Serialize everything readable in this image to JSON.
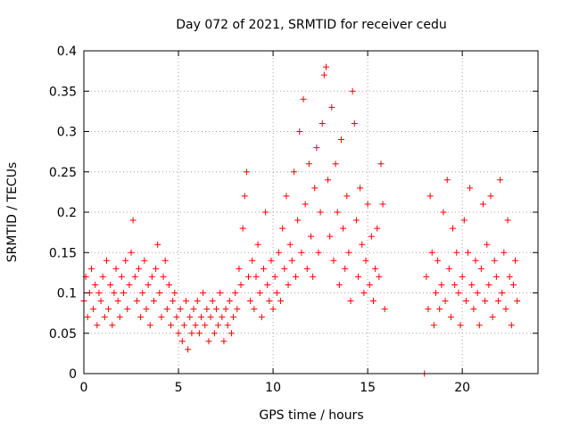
{
  "chart_data": {
    "type": "scatter",
    "title": "Day 072 of 2021, SRMTID for receiver cedu",
    "xlabel": "GPS time / hours",
    "ylabel": "SRMTID / TECUs",
    "xlim": [
      0,
      24
    ],
    "ylim": [
      0,
      0.4
    ],
    "x_ticks": [
      0,
      5,
      10,
      15,
      20
    ],
    "x_tick_labels": [
      "0",
      "5",
      "10",
      "15",
      "20"
    ],
    "y_ticks": [
      0,
      0.05,
      0.1,
      0.15,
      0.2,
      0.25,
      0.3,
      0.35,
      0.4
    ],
    "y_tick_labels": [
      "0",
      "0.05",
      "0.1",
      "0.15",
      "0.2",
      "0.25",
      "0.3",
      "0.35",
      "0.4"
    ],
    "grid": true,
    "marker": "plus",
    "color": "#ff0000",
    "series": [
      {
        "name": "SRMTID",
        "points": [
          [
            0.0,
            0.09
          ],
          [
            0.1,
            0.12
          ],
          [
            0.2,
            0.07
          ],
          [
            0.3,
            0.1
          ],
          [
            0.4,
            0.13
          ],
          [
            0.5,
            0.08
          ],
          [
            0.6,
            0.11
          ],
          [
            0.7,
            0.06
          ],
          [
            0.8,
            0.1
          ],
          [
            0.9,
            0.09
          ],
          [
            1.0,
            0.12
          ],
          [
            1.1,
            0.07
          ],
          [
            1.2,
            0.14
          ],
          [
            1.3,
            0.08
          ],
          [
            1.4,
            0.11
          ],
          [
            1.5,
            0.06
          ],
          [
            1.6,
            0.1
          ],
          [
            1.7,
            0.13
          ],
          [
            1.8,
            0.09
          ],
          [
            1.9,
            0.07
          ],
          [
            2.0,
            0.12
          ],
          [
            2.1,
            0.1
          ],
          [
            2.2,
            0.14
          ],
          [
            2.3,
            0.08
          ],
          [
            2.4,
            0.11
          ],
          [
            2.5,
            0.15
          ],
          [
            2.6,
            0.19
          ],
          [
            2.7,
            0.12
          ],
          [
            2.8,
            0.09
          ],
          [
            2.9,
            0.13
          ],
          [
            3.0,
            0.07
          ],
          [
            3.1,
            0.1
          ],
          [
            3.2,
            0.14
          ],
          [
            3.3,
            0.08
          ],
          [
            3.4,
            0.11
          ],
          [
            3.5,
            0.06
          ],
          [
            3.6,
            0.12
          ],
          [
            3.7,
            0.09
          ],
          [
            3.8,
            0.13
          ],
          [
            3.9,
            0.16
          ],
          [
            4.0,
            0.1
          ],
          [
            4.1,
            0.07
          ],
          [
            4.2,
            0.12
          ],
          [
            4.3,
            0.14
          ],
          [
            4.4,
            0.08
          ],
          [
            4.5,
            0.11
          ],
          [
            4.6,
            0.06
          ],
          [
            4.7,
            0.09
          ],
          [
            4.8,
            0.1
          ],
          [
            4.9,
            0.07
          ],
          [
            5.0,
            0.05
          ],
          [
            5.1,
            0.08
          ],
          [
            5.2,
            0.04
          ],
          [
            5.3,
            0.06
          ],
          [
            5.4,
            0.09
          ],
          [
            5.5,
            0.03
          ],
          [
            5.6,
            0.07
          ],
          [
            5.7,
            0.05
          ],
          [
            5.8,
            0.08
          ],
          [
            5.9,
            0.06
          ],
          [
            6.0,
            0.09
          ],
          [
            6.1,
            0.05
          ],
          [
            6.2,
            0.07
          ],
          [
            6.3,
            0.1
          ],
          [
            6.4,
            0.06
          ],
          [
            6.5,
            0.08
          ],
          [
            6.6,
            0.04
          ],
          [
            6.7,
            0.07
          ],
          [
            6.8,
            0.09
          ],
          [
            6.9,
            0.05
          ],
          [
            7.0,
            0.08
          ],
          [
            7.1,
            0.06
          ],
          [
            7.2,
            0.1
          ],
          [
            7.3,
            0.07
          ],
          [
            7.4,
            0.04
          ],
          [
            7.5,
            0.08
          ],
          [
            7.6,
            0.06
          ],
          [
            7.7,
            0.09
          ],
          [
            7.8,
            0.05
          ],
          [
            7.9,
            0.07
          ],
          [
            8.0,
            0.1
          ],
          [
            8.1,
            0.08
          ],
          [
            8.2,
            0.13
          ],
          [
            8.3,
            0.11
          ],
          [
            8.4,
            0.18
          ],
          [
            8.5,
            0.22
          ],
          [
            8.6,
            0.25
          ],
          [
            8.7,
            0.12
          ],
          [
            8.8,
            0.09
          ],
          [
            8.9,
            0.14
          ],
          [
            9.0,
            0.08
          ],
          [
            9.1,
            0.12
          ],
          [
            9.2,
            0.16
          ],
          [
            9.3,
            0.1
          ],
          [
            9.4,
            0.07
          ],
          [
            9.5,
            0.13
          ],
          [
            9.6,
            0.2
          ],
          [
            9.7,
            0.11
          ],
          [
            9.8,
            0.09
          ],
          [
            9.9,
            0.14
          ],
          [
            10.0,
            0.08
          ],
          [
            10.1,
            0.12
          ],
          [
            10.2,
            0.1
          ],
          [
            10.3,
            0.15
          ],
          [
            10.4,
            0.09
          ],
          [
            10.5,
            0.18
          ],
          [
            10.6,
            0.13
          ],
          [
            10.7,
            0.22
          ],
          [
            10.8,
            0.11
          ],
          [
            10.9,
            0.16
          ],
          [
            11.0,
            0.14
          ],
          [
            11.1,
            0.25
          ],
          [
            11.2,
            0.12
          ],
          [
            11.3,
            0.19
          ],
          [
            11.4,
            0.3
          ],
          [
            11.5,
            0.15
          ],
          [
            11.6,
            0.34
          ],
          [
            11.7,
            0.21
          ],
          [
            11.8,
            0.13
          ],
          [
            11.9,
            0.26
          ],
          [
            12.0,
            0.17
          ],
          [
            12.1,
            0.12
          ],
          [
            12.2,
            0.23
          ],
          [
            12.3,
            0.28
          ],
          [
            12.4,
            0.15
          ],
          [
            12.5,
            0.2
          ],
          [
            12.6,
            0.31
          ],
          [
            12.7,
            0.37
          ],
          [
            12.8,
            0.38
          ],
          [
            12.9,
            0.24
          ],
          [
            13.0,
            0.17
          ],
          [
            13.1,
            0.33
          ],
          [
            13.2,
            0.14
          ],
          [
            13.3,
            0.26
          ],
          [
            13.4,
            0.2
          ],
          [
            13.5,
            0.11
          ],
          [
            13.6,
            0.29
          ],
          [
            13.7,
            0.18
          ],
          [
            13.8,
            0.13
          ],
          [
            13.9,
            0.22
          ],
          [
            14.0,
            0.15
          ],
          [
            14.1,
            0.09
          ],
          [
            14.2,
            0.35
          ],
          [
            14.3,
            0.31
          ],
          [
            14.4,
            0.19
          ],
          [
            14.5,
            0.12
          ],
          [
            14.6,
            0.23
          ],
          [
            14.7,
            0.16
          ],
          [
            14.8,
            0.1
          ],
          [
            14.9,
            0.14
          ],
          [
            15.0,
            0.21
          ],
          [
            15.1,
            0.11
          ],
          [
            15.2,
            0.17
          ],
          [
            15.3,
            0.09
          ],
          [
            15.4,
            0.13
          ],
          [
            15.5,
            0.18
          ],
          [
            15.6,
            0.12
          ],
          [
            15.7,
            0.26
          ],
          [
            15.8,
            0.21
          ],
          [
            15.9,
            0.08
          ],
          [
            18.0,
            0.0
          ],
          [
            18.1,
            0.12
          ],
          [
            18.2,
            0.08
          ],
          [
            18.3,
            0.22
          ],
          [
            18.4,
            0.15
          ],
          [
            18.5,
            0.06
          ],
          [
            18.6,
            0.1
          ],
          [
            18.7,
            0.14
          ],
          [
            18.8,
            0.08
          ],
          [
            18.9,
            0.11
          ],
          [
            19.0,
            0.2
          ],
          [
            19.1,
            0.09
          ],
          [
            19.2,
            0.24
          ],
          [
            19.3,
            0.13
          ],
          [
            19.4,
            0.07
          ],
          [
            19.5,
            0.18
          ],
          [
            19.6,
            0.11
          ],
          [
            19.7,
            0.15
          ],
          [
            19.8,
            0.1
          ],
          [
            19.9,
            0.06
          ],
          [
            20.0,
            0.12
          ],
          [
            20.1,
            0.19
          ],
          [
            20.2,
            0.09
          ],
          [
            20.3,
            0.15
          ],
          [
            20.4,
            0.23
          ],
          [
            20.5,
            0.11
          ],
          [
            20.6,
            0.08
          ],
          [
            20.7,
            0.14
          ],
          [
            20.8,
            0.1
          ],
          [
            20.9,
            0.06
          ],
          [
            21.0,
            0.13
          ],
          [
            21.1,
            0.21
          ],
          [
            21.2,
            0.09
          ],
          [
            21.3,
            0.16
          ],
          [
            21.4,
            0.11
          ],
          [
            21.5,
            0.22
          ],
          [
            21.6,
            0.07
          ],
          [
            21.7,
            0.14
          ],
          [
            21.8,
            0.12
          ],
          [
            21.9,
            0.09
          ],
          [
            22.0,
            0.24
          ],
          [
            22.1,
            0.1
          ],
          [
            22.2,
            0.15
          ],
          [
            22.3,
            0.08
          ],
          [
            22.4,
            0.19
          ],
          [
            22.5,
            0.12
          ],
          [
            22.6,
            0.06
          ],
          [
            22.7,
            0.11
          ],
          [
            22.8,
            0.14
          ],
          [
            22.9,
            0.09
          ]
        ]
      }
    ]
  }
}
